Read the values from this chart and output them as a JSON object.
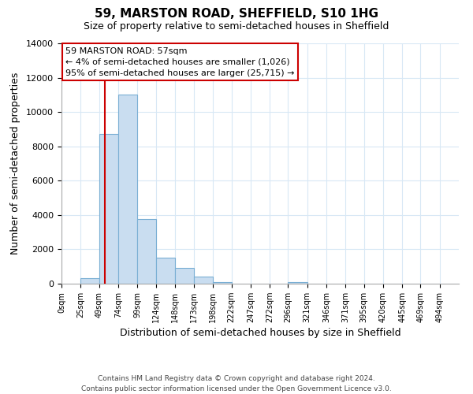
{
  "title": "59, MARSTON ROAD, SHEFFIELD, S10 1HG",
  "subtitle": "Size of property relative to semi-detached houses in Sheffield",
  "xlabel": "Distribution of semi-detached houses by size in Sheffield",
  "ylabel": "Number of semi-detached properties",
  "bar_left_edges": [
    25,
    49,
    74,
    99,
    124,
    148,
    173,
    198,
    222,
    247,
    272,
    296
  ],
  "bar_widths": [
    24,
    25,
    25,
    25,
    24,
    25,
    25,
    24,
    25,
    25,
    24,
    25
  ],
  "bar_heights": [
    300,
    8700,
    11000,
    3750,
    1500,
    900,
    400,
    100,
    0,
    0,
    0,
    100
  ],
  "bar_color": "#c9ddf0",
  "bar_edgecolor": "#7aafd4",
  "x_tick_labels": [
    "0sqm",
    "25sqm",
    "49sqm",
    "74sqm",
    "99sqm",
    "124sqm",
    "148sqm",
    "173sqm",
    "198sqm",
    "222sqm",
    "247sqm",
    "272sqm",
    "296sqm",
    "321sqm",
    "346sqm",
    "371sqm",
    "395sqm",
    "420sqm",
    "445sqm",
    "469sqm",
    "494sqm"
  ],
  "x_tick_positions": [
    0,
    25,
    49,
    74,
    99,
    124,
    148,
    173,
    198,
    222,
    247,
    272,
    296,
    321,
    346,
    371,
    395,
    420,
    445,
    469,
    494
  ],
  "xlim": [
    0,
    519
  ],
  "ylim": [
    0,
    14000
  ],
  "yticks": [
    0,
    2000,
    4000,
    6000,
    8000,
    10000,
    12000,
    14000
  ],
  "property_line_x": 57,
  "property_line_color": "#cc0000",
  "annotation_title": "59 MARSTON ROAD: 57sqm",
  "annotation_line1": "← 4% of semi-detached houses are smaller (1,026)",
  "annotation_line2": "95% of semi-detached houses are larger (25,715) →",
  "annotation_box_color": "#ffffff",
  "annotation_box_edgecolor": "#cc0000",
  "footer_line1": "Contains HM Land Registry data © Crown copyright and database right 2024.",
  "footer_line2": "Contains public sector information licensed under the Open Government Licence v3.0.",
  "background_color": "#ffffff",
  "grid_color": "#d8e8f5",
  "spine_color": "#aaaaaa"
}
